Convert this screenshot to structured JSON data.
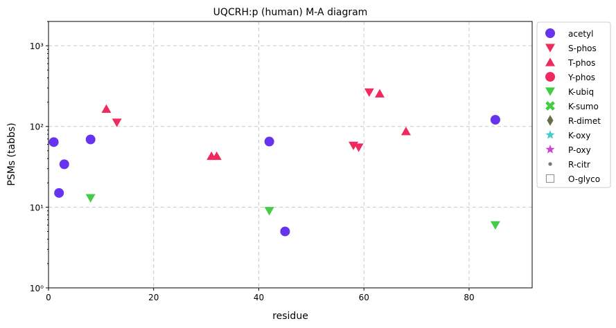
{
  "chart_data": {
    "type": "scatter",
    "title": "UQCRH:p (human) M-A diagram",
    "xlabel": "residue",
    "ylabel": "PSMs (tabbs)",
    "xlim": [
      0,
      92
    ],
    "ylim": [
      1,
      2000
    ],
    "yscale": "log",
    "grid": true,
    "legend_position": "outside-right",
    "x_ticks": [
      0,
      20,
      40,
      60,
      80
    ],
    "y_ticks": [
      1,
      10,
      100,
      1000
    ],
    "y_tick_labels": [
      "10⁰",
      "10¹",
      "10²",
      "10³"
    ],
    "series": [
      {
        "name": "acetyl",
        "marker": "circle",
        "color": "#6633ee",
        "points": [
          [
            1,
            64
          ],
          [
            2,
            15
          ],
          [
            3,
            34
          ],
          [
            8,
            69
          ],
          [
            42,
            65
          ],
          [
            45,
            5
          ],
          [
            85,
            121
          ]
        ]
      },
      {
        "name": "S-phos",
        "marker": "triangle-down",
        "color": "#ee2a5e",
        "points": [
          [
            13,
            112
          ],
          [
            58,
            58
          ],
          [
            59,
            55
          ],
          [
            61,
            265
          ]
        ]
      },
      {
        "name": "T-phos",
        "marker": "triangle-up",
        "color": "#ee2a5e",
        "points": [
          [
            11,
            165
          ],
          [
            31,
            43
          ],
          [
            32,
            43
          ],
          [
            63,
            255
          ],
          [
            68,
            87
          ]
        ]
      },
      {
        "name": "Y-phos",
        "marker": "circle",
        "color": "#ee2a5e",
        "points": []
      },
      {
        "name": "K-ubiq",
        "marker": "triangle-down",
        "color": "#44cc44",
        "points": [
          [
            8,
            13
          ],
          [
            42,
            9
          ],
          [
            85,
            6
          ]
        ]
      },
      {
        "name": "K-sumo",
        "marker": "x-cross",
        "color": "#44cc44",
        "points": []
      },
      {
        "name": "R-dimet",
        "marker": "diamond",
        "color": "#6b6b45",
        "points": []
      },
      {
        "name": "K-oxy",
        "marker": "star",
        "color": "#44cccc",
        "points": []
      },
      {
        "name": "P-oxy",
        "marker": "star",
        "color": "#cc44cc",
        "points": []
      },
      {
        "name": "R-citr",
        "marker": "small-dot",
        "color": "#777777",
        "points": []
      },
      {
        "name": "O-glyco",
        "marker": "open-square",
        "color": "#888888",
        "points": []
      }
    ]
  }
}
